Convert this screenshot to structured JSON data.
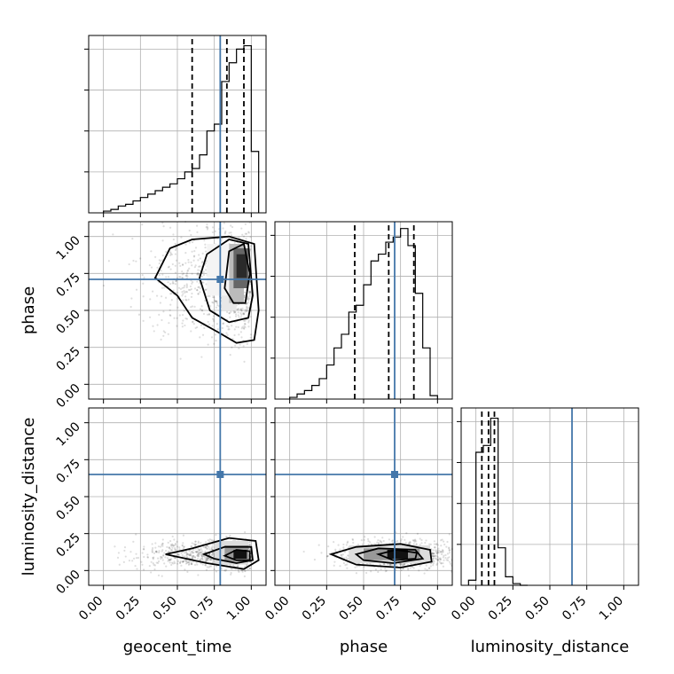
{
  "chart_data": {
    "type": "corner",
    "params": [
      "geocent_time",
      "phase",
      "luminosity_distance"
    ],
    "truths": [
      0.79,
      0.71,
      0.65
    ],
    "tick_labels": [
      "0.00",
      "0.25",
      "0.50",
      "0.75",
      "1.00"
    ],
    "axis_range": [
      -0.1,
      1.1
    ],
    "grid": true,
    "colors": {
      "truth": "#4477aa",
      "hist": "#000000",
      "quantile": "#000000",
      "grid": "#b0b0b0"
    },
    "marginals": [
      {
        "param": "geocent_time",
        "bin_edges": [
          0.0,
          0.05,
          0.1,
          0.15,
          0.2,
          0.25,
          0.3,
          0.35,
          0.4,
          0.45,
          0.5,
          0.55,
          0.6,
          0.65,
          0.7,
          0.75,
          0.8,
          0.85,
          0.9,
          0.95,
          1.0,
          1.05
        ],
        "counts": [
          0.01,
          0.02,
          0.04,
          0.05,
          0.07,
          0.09,
          0.11,
          0.13,
          0.15,
          0.17,
          0.2,
          0.24,
          0.26,
          0.34,
          0.48,
          0.52,
          0.77,
          0.88,
          0.96,
          0.98,
          0.36
        ],
        "quantiles": [
          0.6,
          0.835,
          0.95
        ]
      },
      {
        "param": "phase",
        "bin_edges": [
          0.0,
          0.05,
          0.1,
          0.15,
          0.2,
          0.25,
          0.3,
          0.35,
          0.4,
          0.45,
          0.5,
          0.55,
          0.6,
          0.65,
          0.7,
          0.75,
          0.8,
          0.85,
          0.9,
          0.95,
          1.0
        ],
        "counts": [
          0.01,
          0.03,
          0.05,
          0.08,
          0.12,
          0.2,
          0.3,
          0.38,
          0.51,
          0.55,
          0.67,
          0.81,
          0.85,
          0.92,
          0.95,
          1.0,
          0.9,
          0.62,
          0.3,
          0.02
        ],
        "quantiles": [
          0.44,
          0.67,
          0.84
        ]
      },
      {
        "param": "luminosity_distance",
        "bin_edges": [
          -0.05,
          0.0,
          0.05,
          0.1,
          0.15,
          0.2,
          0.25,
          0.3,
          0.35
        ],
        "counts": [
          0.03,
          0.78,
          0.82,
          0.98,
          0.22,
          0.05,
          0.01,
          0.0
        ],
        "quantiles": [
          0.04,
          0.085,
          0.125
        ]
      }
    ],
    "pairs": [
      {
        "x": "geocent_time",
        "y": "phase"
      },
      {
        "x": "geocent_time",
        "y": "luminosity_distance"
      },
      {
        "x": "phase",
        "y": "luminosity_distance"
      }
    ]
  }
}
